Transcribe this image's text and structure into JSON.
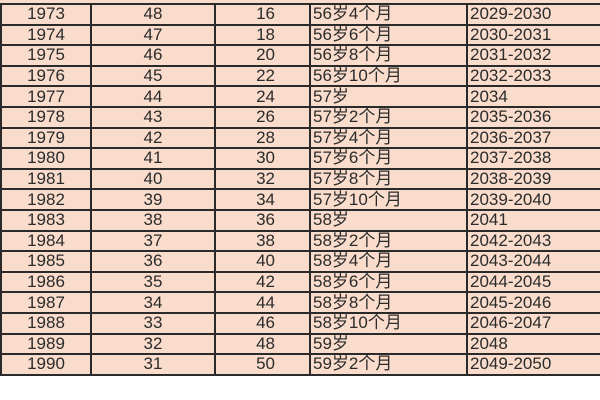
{
  "table": {
    "rows": [
      [
        "1973",
        "48",
        "16",
        "56岁4个月",
        "2029-2030"
      ],
      [
        "1974",
        "47",
        "18",
        "56岁6个月",
        "2030-2031"
      ],
      [
        "1975",
        "46",
        "20",
        "56岁8个月",
        "2031-2032"
      ],
      [
        "1976",
        "45",
        "22",
        "56岁10个月",
        "2032-2033"
      ],
      [
        "1977",
        "44",
        "24",
        "57岁",
        "2034"
      ],
      [
        "1978",
        "43",
        "26",
        "57岁2个月",
        "2035-2036"
      ],
      [
        "1979",
        "42",
        "28",
        "57岁4个月",
        "2036-2037"
      ],
      [
        "1980",
        "41",
        "30",
        "57岁6个月",
        "2037-2038"
      ],
      [
        "1981",
        "40",
        "32",
        "57岁8个月",
        "2038-2039"
      ],
      [
        "1982",
        "39",
        "34",
        "57岁10个月",
        "2039-2040"
      ],
      [
        "1983",
        "38",
        "36",
        "58岁",
        "2041"
      ],
      [
        "1984",
        "37",
        "38",
        "58岁2个月",
        "2042-2043"
      ],
      [
        "1985",
        "36",
        "40",
        "58岁4个月",
        "2043-2044"
      ],
      [
        "1986",
        "35",
        "42",
        "58岁6个月",
        "2044-2045"
      ],
      [
        "1987",
        "34",
        "44",
        "58岁8个月",
        "2045-2046"
      ],
      [
        "1988",
        "33",
        "46",
        "58岁10个月",
        "2046-2047"
      ],
      [
        "1989",
        "32",
        "48",
        "59岁",
        "2048"
      ],
      [
        "1990",
        "31",
        "50",
        "59岁2个月",
        "2049-2050"
      ]
    ]
  },
  "colors": {
    "cell_background": "#f9dccb",
    "border": "#2a2a2a",
    "text": "#2b2b2b"
  }
}
